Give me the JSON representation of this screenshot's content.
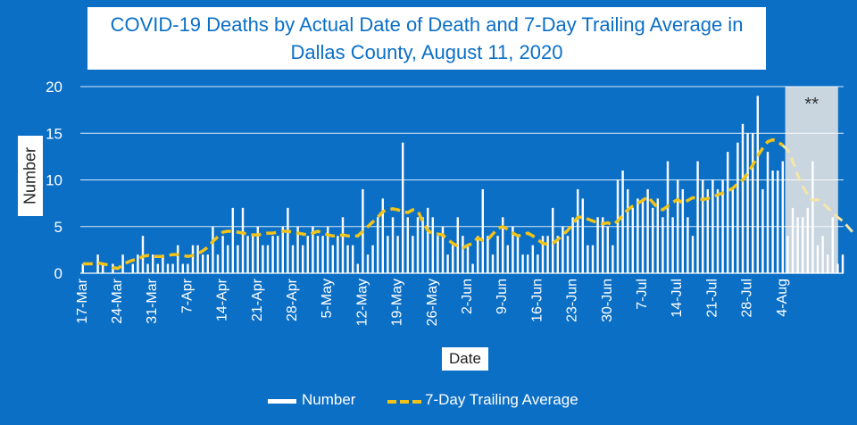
{
  "title": "COVID-19 Deaths by Actual Date of Death and 7-Day Trailing Average in Dallas County, August 11, 2020",
  "colors": {
    "background": "#0b6fc6",
    "bars": "#ffffff",
    "average_line": "#f2c318",
    "shaded_region": "#d4dbe2"
  },
  "chart_data": {
    "type": "bar",
    "title": "COVID-19 Deaths by Actual Date of Death and 7-Day Trailing Average in Dallas County, August 11, 2020",
    "xlabel": "Date",
    "ylabel": "Number",
    "ylim": [
      0,
      20
    ],
    "yticks": [
      0,
      5,
      10,
      15,
      20
    ],
    "grid": true,
    "legend_position": "bottom",
    "start_date": "2020-03-17",
    "x_tick_labels": [
      "17-Mar",
      "24-Mar",
      "31-Mar",
      "7-Apr",
      "14-Apr",
      "21-Apr",
      "28-Apr",
      "5-May",
      "12-May",
      "19-May",
      "26-May",
      "2-Jun",
      "9-Jun",
      "16-Jun",
      "23-Jun",
      "30-Jun",
      "7-Jul",
      "14-Jul",
      "21-Jul",
      "28-Jul",
      "4-Aug"
    ],
    "shaded_region": {
      "from": "2020-08-05",
      "to": "2020-08-11",
      "label": "**"
    },
    "series": [
      {
        "name": "Number",
        "kind": "bar",
        "values": [
          1,
          0,
          0,
          2,
          1,
          0,
          1,
          0,
          2,
          0,
          1,
          2,
          4,
          1,
          2,
          1,
          2,
          1,
          1,
          3,
          1,
          1,
          3,
          3,
          2,
          2,
          5,
          2,
          4,
          3,
          7,
          3,
          7,
          4,
          4,
          5,
          3,
          3,
          4,
          4,
          5,
          7,
          3,
          5,
          3,
          4,
          5,
          4,
          4,
          5,
          3,
          4,
          6,
          3,
          3,
          1,
          9,
          2,
          3,
          6,
          8,
          4,
          6,
          4,
          14,
          6,
          4,
          6,
          6,
          7,
          6,
          4,
          5,
          2,
          3,
          6,
          4,
          3,
          1,
          4,
          9,
          4,
          2,
          4,
          6,
          3,
          5,
          4,
          2,
          2,
          3,
          2,
          4,
          4,
          7,
          4,
          5,
          4,
          6,
          9,
          8,
          3,
          3,
          6,
          6,
          5,
          3,
          10,
          11,
          9,
          7,
          8,
          8,
          9,
          7,
          8,
          6,
          12,
          6,
          10,
          9,
          6,
          4,
          12,
          10,
          9,
          10,
          9,
          10,
          13,
          9,
          14,
          16,
          15,
          15,
          19,
          9,
          13,
          11,
          11,
          12,
          4,
          7,
          6,
          6,
          7,
          12,
          3,
          4,
          2,
          6,
          1,
          2
        ]
      },
      {
        "name": "7-Day Trailing Average",
        "kind": "line",
        "values": [
          1.0,
          1.0,
          1.0,
          1.1,
          1.0,
          0.9,
          0.6,
          0.5,
          0.9,
          1.2,
          1.4,
          1.5,
          1.8,
          1.9,
          1.8,
          1.8,
          1.8,
          1.9,
          2.0,
          2.0,
          1.9,
          1.8,
          1.9,
          2.1,
          2.4,
          2.8,
          3.4,
          3.9,
          4.4,
          4.5,
          4.5,
          4.4,
          4.3,
          4.2,
          4.1,
          4.1,
          4.2,
          4.3,
          4.3,
          4.4,
          4.5,
          4.5,
          4.4,
          4.3,
          4.2,
          4.1,
          4.3,
          4.5,
          4.3,
          4.1,
          4.0,
          4.0,
          4.1,
          4.0,
          4.0,
          4.0,
          4.5,
          5.0,
          5.5,
          6.0,
          6.6,
          6.8,
          6.9,
          6.8,
          6.6,
          6.5,
          6.8,
          6.7,
          5.5,
          4.6,
          4.2,
          4.2,
          4.1,
          3.6,
          3.2,
          2.9,
          2.7,
          3.0,
          3.2,
          3.8,
          3.5,
          3.6,
          4.2,
          4.8,
          5.0,
          4.7,
          4.3,
          4.0,
          4.1,
          4.3,
          4.0,
          3.6,
          3.2,
          3.1,
          3.2,
          3.6,
          4.1,
          4.6,
          5.3,
          6.0,
          6.0,
          5.8,
          5.6,
          5.4,
          5.3,
          5.4,
          5.2,
          5.6,
          6.2,
          6.8,
          7.2,
          7.5,
          7.8,
          8.2,
          7.6,
          7.0,
          6.8,
          7.2,
          7.6,
          7.9,
          7.5,
          7.8,
          8.1,
          8.0,
          7.9,
          8.0,
          8.2,
          8.4,
          8.6,
          8.8,
          9.1,
          9.6,
          10.0,
          10.7,
          11.6,
          12.6,
          13.4,
          14.1,
          14.3,
          14.1,
          13.7,
          13.2,
          12.0,
          10.5,
          9.3,
          8.4,
          7.8,
          7.9,
          7.5,
          7.0,
          6.5,
          6.0,
          5.6,
          5.0,
          4.4
        ]
      }
    ]
  }
}
